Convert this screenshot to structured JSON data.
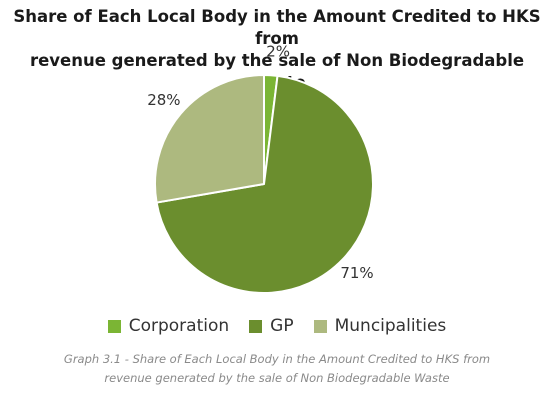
{
  "chart_data": {
    "type": "pie",
    "title_lines": [
      "Share of Each Local Body in the Amount Credited to HKS from",
      "revenue generated by the sale of Non Biodegradable Waste"
    ],
    "categories": [
      "Corporation",
      "GP",
      "Muncipalities"
    ],
    "values": [
      2,
      71,
      28
    ],
    "value_labels": [
      "2%",
      "71%",
      "28%"
    ],
    "colors": [
      "#7bb534",
      "#6b8e2e",
      "#adb97f"
    ],
    "legend": {
      "position": "bottom",
      "entries": [
        "Corporation",
        "GP",
        "Muncipalities"
      ]
    }
  },
  "caption_lines": [
    "Graph 3.1 - Share of Each Local Body in the Amount Credited to HKS from",
    "revenue generated by the sale of Non Biodegradable Waste"
  ]
}
